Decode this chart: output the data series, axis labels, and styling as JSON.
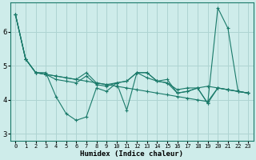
{
  "xlabel": "Humidex (Indice chaleur)",
  "ylabel": "",
  "background_color": "#ceecea",
  "grid_color": "#aed4d2",
  "line_color": "#1a7a6a",
  "xlim": [
    -0.5,
    23.5
  ],
  "ylim": [
    2.8,
    6.85
  ],
  "yticks": [
    3,
    4,
    5,
    6
  ],
  "xticks": [
    0,
    1,
    2,
    3,
    4,
    5,
    6,
    7,
    8,
    9,
    10,
    11,
    12,
    13,
    14,
    15,
    16,
    17,
    18,
    19,
    20,
    21,
    22,
    23
  ],
  "series": [
    [
      6.5,
      5.2,
      4.8,
      4.8,
      4.1,
      3.6,
      3.4,
      3.5,
      4.35,
      4.25,
      4.5,
      3.7,
      4.8,
      4.8,
      4.55,
      4.6,
      4.2,
      4.25,
      4.35,
      3.9,
      6.7,
      6.1,
      4.25,
      4.2
    ],
    [
      6.5,
      5.2,
      4.8,
      4.75,
      4.7,
      4.65,
      4.6,
      4.55,
      4.5,
      4.45,
      4.4,
      4.35,
      4.3,
      4.25,
      4.2,
      4.15,
      4.1,
      4.05,
      4.0,
      3.95,
      4.35,
      4.3,
      4.25,
      4.2
    ],
    [
      6.5,
      5.2,
      4.8,
      4.75,
      4.6,
      4.55,
      4.5,
      4.7,
      4.45,
      4.4,
      4.5,
      4.55,
      4.8,
      4.8,
      4.55,
      4.5,
      4.3,
      4.35,
      4.35,
      4.4,
      4.35,
      4.3,
      4.25,
      4.2
    ],
    [
      6.5,
      5.2,
      4.8,
      4.75,
      4.7,
      4.65,
      4.6,
      4.8,
      4.5,
      4.45,
      4.5,
      4.55,
      4.8,
      4.65,
      4.55,
      4.5,
      4.2,
      4.25,
      4.35,
      3.9,
      4.35,
      4.3,
      4.25,
      4.2
    ]
  ]
}
